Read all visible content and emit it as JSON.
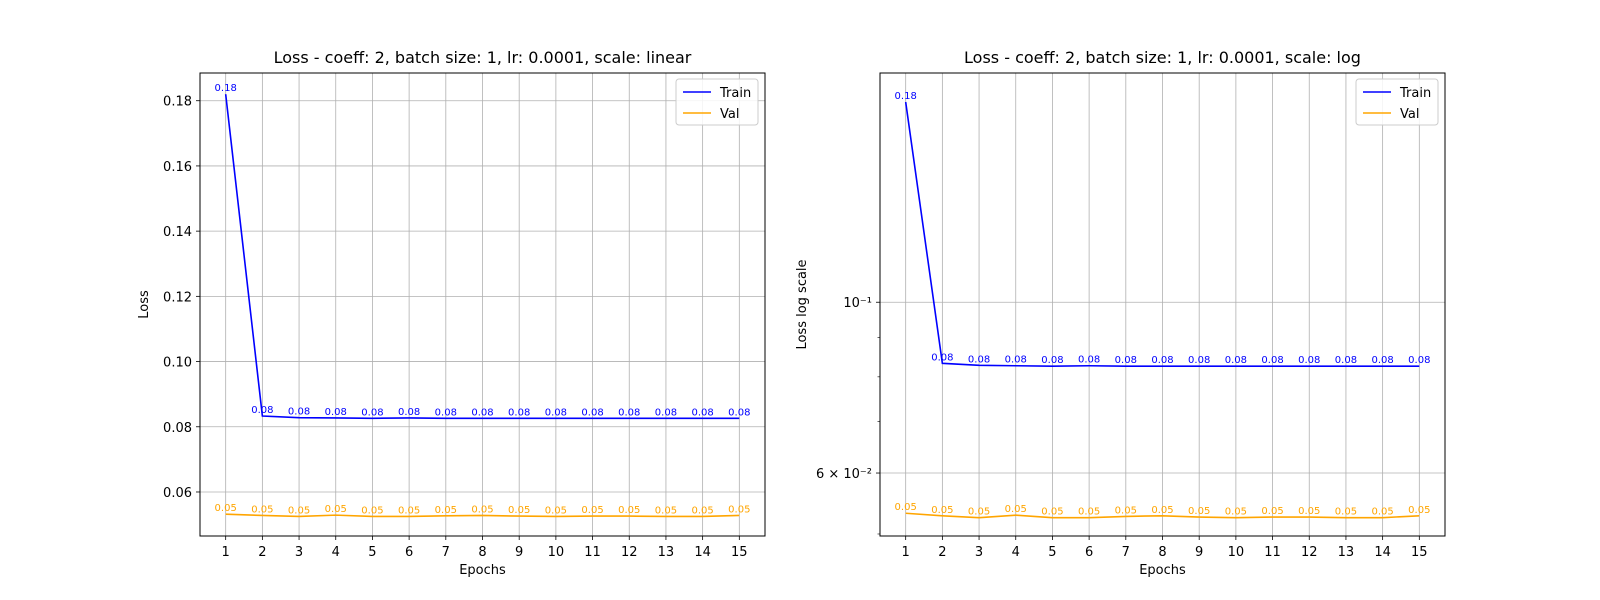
{
  "chart_data": [
    {
      "type": "line",
      "title": "Loss - coeff: 2, batch size: 1, lr: 0.0001, scale: linear",
      "xlabel": "Epochs",
      "ylabel": "Loss",
      "yscale": "linear",
      "x": [
        1,
        2,
        3,
        4,
        5,
        6,
        7,
        8,
        9,
        10,
        11,
        12,
        13,
        14,
        15
      ],
      "xlim": [
        0.3,
        15.7
      ],
      "ylim": [
        0.0465,
        0.1885
      ],
      "yticks": [
        0.06,
        0.08,
        0.1,
        0.12,
        0.14,
        0.16,
        0.18
      ],
      "ytick_labels": [
        "0.06",
        "0.08",
        "0.10",
        "0.12",
        "0.14",
        "0.16",
        "0.18"
      ],
      "grid": true,
      "legend_position": "top-right",
      "series": [
        {
          "name": "Train",
          "color": "#0000ff",
          "values": [
            0.182,
            0.0833,
            0.0828,
            0.0827,
            0.0826,
            0.0827,
            0.0826,
            0.0826,
            0.0826,
            0.0826,
            0.0826,
            0.0826,
            0.0826,
            0.0826,
            0.0826
          ],
          "labels": [
            "0.18",
            "0.08",
            "0.08",
            "0.08",
            "0.08",
            "0.08",
            "0.08",
            "0.08",
            "0.08",
            "0.08",
            "0.08",
            "0.08",
            "0.08",
            "0.08",
            "0.08"
          ]
        },
        {
          "name": "Val",
          "color": "#ffa500",
          "values": [
            0.0532,
            0.0528,
            0.0525,
            0.0529,
            0.0525,
            0.0525,
            0.0527,
            0.0528,
            0.0526,
            0.0525,
            0.0526,
            0.0526,
            0.0525,
            0.0525,
            0.0528
          ],
          "labels": [
            "0.05",
            "0.05",
            "0.05",
            "0.05",
            "0.05",
            "0.05",
            "0.05",
            "0.05",
            "0.05",
            "0.05",
            "0.05",
            "0.05",
            "0.05",
            "0.05",
            "0.05"
          ]
        }
      ]
    },
    {
      "type": "line",
      "title": "Loss - coeff: 2, batch size: 1, lr: 0.0001, scale: log",
      "xlabel": "Epochs",
      "ylabel": "Loss log scale",
      "yscale": "log",
      "x": [
        1,
        2,
        3,
        4,
        5,
        6,
        7,
        8,
        9,
        10,
        11,
        12,
        13,
        14,
        15
      ],
      "xlim": [
        0.3,
        15.7
      ],
      "ylim": [
        0.0497,
        0.1985
      ],
      "yticks": [
        0.1,
        0.06
      ],
      "ytick_labels": [
        "10⁻¹",
        "6 × 10⁻²"
      ],
      "minor_yticks": [
        0.05,
        0.07,
        0.08,
        0.09
      ],
      "grid": true,
      "legend_position": "top-right",
      "series": [
        {
          "name": "Train",
          "color": "#0000ff",
          "values": [
            0.182,
            0.0833,
            0.0828,
            0.0827,
            0.0826,
            0.0827,
            0.0826,
            0.0826,
            0.0826,
            0.0826,
            0.0826,
            0.0826,
            0.0826,
            0.0826,
            0.0826
          ],
          "labels": [
            "0.18",
            "0.08",
            "0.08",
            "0.08",
            "0.08",
            "0.08",
            "0.08",
            "0.08",
            "0.08",
            "0.08",
            "0.08",
            "0.08",
            "0.08",
            "0.08",
            "0.08"
          ]
        },
        {
          "name": "Val",
          "color": "#ffa500",
          "values": [
            0.0532,
            0.0528,
            0.0525,
            0.0529,
            0.0525,
            0.0525,
            0.0527,
            0.0528,
            0.0526,
            0.0525,
            0.0526,
            0.0526,
            0.0525,
            0.0525,
            0.0528
          ],
          "labels": [
            "0.05",
            "0.05",
            "0.05",
            "0.05",
            "0.05",
            "0.05",
            "0.05",
            "0.05",
            "0.05",
            "0.05",
            "0.05",
            "0.05",
            "0.05",
            "0.05",
            "0.05"
          ]
        }
      ]
    }
  ]
}
